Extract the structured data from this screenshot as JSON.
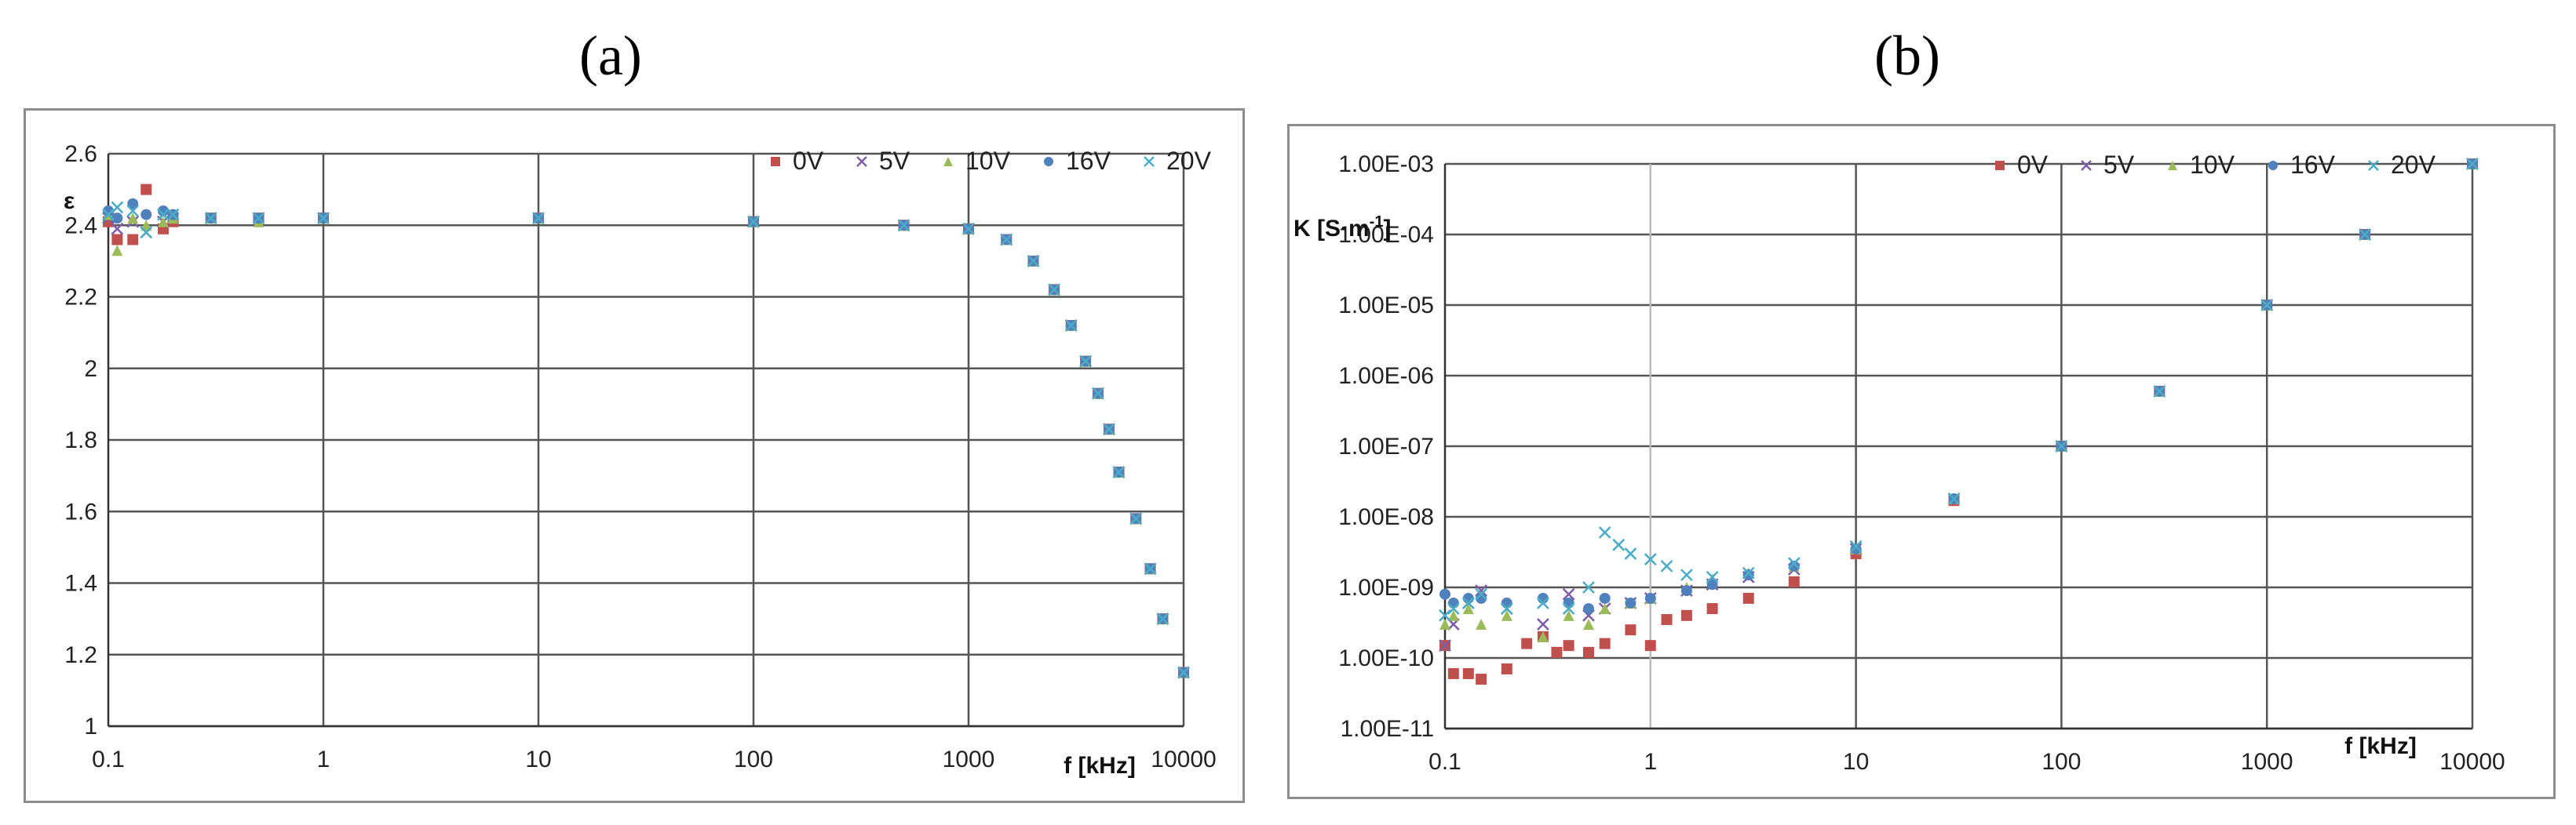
{
  "panel_labels": {
    "a": "(a)",
    "b": "(b)"
  },
  "chart_data": [
    {
      "id": "a",
      "type": "scatter",
      "title": "",
      "xlabel": "f [kHz]",
      "ylabel": "ε",
      "xscale": "log",
      "xlim": [
        0.1,
        10000
      ],
      "ylim": [
        1,
        2.6
      ],
      "x_ticks": [
        "0.1",
        "1",
        "10",
        "100",
        "1000",
        "10000"
      ],
      "y_ticks": [
        "1",
        "1.2",
        "1.4",
        "1.6",
        "1.8",
        "2",
        "2.2",
        "2.4",
        "2.6"
      ],
      "y_tick_values": [
        1,
        1.2,
        1.4,
        1.6,
        1.8,
        2,
        2.2,
        2.4,
        2.6
      ],
      "legend_position": "top-right",
      "series": [
        {
          "name": "0V",
          "color": "#c0504d",
          "marker": "square",
          "x": [
            0.1,
            0.11,
            0.13,
            0.15,
            0.18,
            0.2,
            0.3,
            0.5,
            1,
            10,
            100,
            500,
            1000,
            1500,
            2000,
            2500,
            3000,
            3500,
            4000,
            4500,
            5000,
            6000,
            7000,
            8000,
            10000
          ],
          "y": [
            2.41,
            2.36,
            2.36,
            2.5,
            2.39,
            2.41,
            2.42,
            2.42,
            2.42,
            2.42,
            2.41,
            2.4,
            2.39,
            2.36,
            2.3,
            2.22,
            2.12,
            2.02,
            1.93,
            1.83,
            1.71,
            1.58,
            1.44,
            1.3,
            1.15
          ]
        },
        {
          "name": "5V",
          "color": "#7f5ea8",
          "marker": "x",
          "x": [
            0.1,
            0.11,
            0.13,
            0.15,
            0.18,
            0.2,
            0.3,
            0.5,
            1,
            10,
            100,
            500,
            1000,
            1500,
            2000,
            2500,
            3000,
            3500,
            4000,
            4500,
            5000,
            6000,
            7000,
            8000,
            10000
          ],
          "y": [
            2.42,
            2.39,
            2.41,
            2.38,
            2.41,
            2.42,
            2.42,
            2.42,
            2.42,
            2.42,
            2.41,
            2.4,
            2.39,
            2.36,
            2.3,
            2.22,
            2.12,
            2.02,
            1.93,
            1.83,
            1.71,
            1.58,
            1.44,
            1.3,
            1.15
          ]
        },
        {
          "name": "10V",
          "color": "#9bbb59",
          "marker": "triangle",
          "x": [
            0.1,
            0.11,
            0.13,
            0.15,
            0.18,
            0.2,
            0.3,
            0.5,
            1,
            10,
            100,
            500,
            1000,
            1500,
            2000,
            2500,
            3000,
            3500,
            4000,
            4500,
            5000,
            6000,
            7000,
            8000,
            10000
          ],
          "y": [
            2.43,
            2.33,
            2.42,
            2.4,
            2.41,
            2.42,
            2.42,
            2.41,
            2.42,
            2.42,
            2.41,
            2.4,
            2.39,
            2.36,
            2.3,
            2.22,
            2.12,
            2.02,
            1.93,
            1.83,
            1.71,
            1.58,
            1.44,
            1.3,
            1.15
          ]
        },
        {
          "name": "16V",
          "color": "#4f81bd",
          "marker": "circle",
          "x": [
            0.1,
            0.11,
            0.13,
            0.15,
            0.18,
            0.2,
            0.3,
            0.5,
            1,
            10,
            100,
            500,
            1000,
            1500,
            2000,
            2500,
            3000,
            3500,
            4000,
            4500,
            5000,
            6000,
            7000,
            8000,
            10000
          ],
          "y": [
            2.44,
            2.42,
            2.46,
            2.43,
            2.44,
            2.43,
            2.42,
            2.42,
            2.42,
            2.42,
            2.41,
            2.4,
            2.39,
            2.36,
            2.3,
            2.22,
            2.12,
            2.02,
            1.93,
            1.83,
            1.71,
            1.58,
            1.44,
            1.3,
            1.15
          ]
        },
        {
          "name": "20V",
          "color": "#4bacc6",
          "marker": "x",
          "x": [
            0.1,
            0.11,
            0.13,
            0.15,
            0.18,
            0.2,
            0.3,
            0.5,
            1,
            10,
            100,
            500,
            1000,
            1500,
            2000,
            2500,
            3000,
            3500,
            4000,
            4500,
            5000,
            6000,
            7000,
            8000,
            10000
          ],
          "y": [
            2.43,
            2.45,
            2.44,
            2.38,
            2.43,
            2.43,
            2.42,
            2.42,
            2.42,
            2.42,
            2.41,
            2.4,
            2.39,
            2.36,
            2.3,
            2.22,
            2.12,
            2.02,
            1.93,
            1.83,
            1.71,
            1.58,
            1.44,
            1.3,
            1.15
          ]
        }
      ]
    },
    {
      "id": "b",
      "type": "scatter",
      "title": "",
      "xlabel": "f [kHz]",
      "ylabel": "K [S·m-1]",
      "ylabel_main": "K [S·m",
      "ylabel_sup": "-1",
      "ylabel_end": "]",
      "xscale": "log",
      "yscale": "log",
      "xlim": [
        0.1,
        10000
      ],
      "ylim": [
        1e-11,
        0.001
      ],
      "x_ticks": [
        "0.1",
        "1",
        "10",
        "100",
        "1000",
        "10000"
      ],
      "y_ticks": [
        "1.00E-11",
        "1.00E-10",
        "1.00E-09",
        "1.00E-08",
        "1.00E-07",
        "1.00E-06",
        "1.00E-05",
        "1.00E-04",
        "1.00E-03"
      ],
      "y_tick_values": [
        1e-11,
        1e-10,
        1e-09,
        1e-08,
        1e-07,
        1e-06,
        1e-05,
        0.0001,
        0.001
      ],
      "legend_position": "top-right",
      "series": [
        {
          "name": "0V",
          "color": "#c0504d",
          "marker": "square",
          "x": [
            0.1,
            0.11,
            0.13,
            0.15,
            0.2,
            0.25,
            0.3,
            0.35,
            0.4,
            0.5,
            0.6,
            0.8,
            1,
            1.2,
            1.5,
            2,
            3,
            5,
            10,
            30,
            100,
            300,
            1000,
            3000,
            10000
          ],
          "y": [
            1.5e-10,
            6e-11,
            6e-11,
            5e-11,
            7e-11,
            1.6e-10,
            2e-10,
            1.2e-10,
            1.5e-10,
            1.2e-10,
            1.6e-10,
            2.5e-10,
            1.5e-10,
            3.5e-10,
            4e-10,
            5e-10,
            7e-10,
            1.2e-09,
            3e-09,
            1.7e-08,
            1e-07,
            6e-07,
            1e-05,
            0.0001,
            0.001
          ]
        },
        {
          "name": "5V",
          "color": "#7f5ea8",
          "marker": "x",
          "x": [
            0.1,
            0.11,
            0.13,
            0.15,
            0.2,
            0.3,
            0.4,
            0.5,
            0.6,
            0.8,
            1,
            1.5,
            2,
            3,
            5,
            10,
            30,
            100,
            300,
            1000,
            3000,
            10000
          ],
          "y": [
            1.5e-10,
            3e-10,
            6e-10,
            9e-10,
            5e-10,
            3e-10,
            8e-10,
            4e-10,
            5e-10,
            6e-10,
            7e-10,
            9e-10,
            1.1e-09,
            1.4e-09,
            1.8e-09,
            3.5e-09,
            1.8e-08,
            1e-07,
            6e-07,
            1e-05,
            0.0001,
            0.001
          ]
        },
        {
          "name": "10V",
          "color": "#9bbb59",
          "marker": "triangle",
          "x": [
            0.1,
            0.11,
            0.13,
            0.15,
            0.2,
            0.3,
            0.4,
            0.5,
            0.6,
            0.8,
            1,
            1.5,
            2,
            3,
            5,
            10,
            30,
            100,
            300,
            1000,
            3000,
            10000
          ],
          "y": [
            3e-10,
            4e-10,
            5e-10,
            3e-10,
            4e-10,
            2e-10,
            4e-10,
            3e-10,
            5e-10,
            6e-10,
            7e-10,
            1e-09,
            1.3e-09,
            1.6e-09,
            2e-09,
            3.5e-09,
            1.8e-08,
            1e-07,
            6e-07,
            1e-05,
            0.0001,
            0.001
          ]
        },
        {
          "name": "16V",
          "color": "#4f81bd",
          "marker": "circle",
          "x": [
            0.1,
            0.11,
            0.13,
            0.15,
            0.2,
            0.3,
            0.4,
            0.5,
            0.6,
            0.8,
            1,
            1.5,
            2,
            3,
            5,
            10,
            30,
            100,
            300,
            1000,
            3000,
            10000
          ],
          "y": [
            8e-10,
            6e-10,
            7e-10,
            7e-10,
            6e-10,
            7e-10,
            6e-10,
            5e-10,
            7e-10,
            6e-10,
            7e-10,
            9e-10,
            1.1e-09,
            1.5e-09,
            2e-09,
            3.5e-09,
            1.8e-08,
            1e-07,
            6e-07,
            1e-05,
            0.0001,
            0.001
          ]
        },
        {
          "name": "20V",
          "color": "#4bacc6",
          "marker": "x",
          "x": [
            0.1,
            0.11,
            0.13,
            0.15,
            0.2,
            0.3,
            0.4,
            0.5,
            0.6,
            0.7,
            0.8,
            1,
            1.2,
            1.5,
            2,
            3,
            5,
            10,
            30,
            100,
            300,
            1000,
            3000,
            10000
          ],
          "y": [
            4e-10,
            5e-10,
            6e-10,
            8e-10,
            5e-10,
            6e-10,
            5e-10,
            1e-09,
            6e-09,
            4e-09,
            3e-09,
            2.5e-09,
            2e-09,
            1.5e-09,
            1.4e-09,
            1.6e-09,
            2.2e-09,
            3.8e-09,
            1.8e-08,
            1e-07,
            6e-07,
            1e-05,
            0.0001,
            0.001
          ]
        }
      ]
    }
  ]
}
